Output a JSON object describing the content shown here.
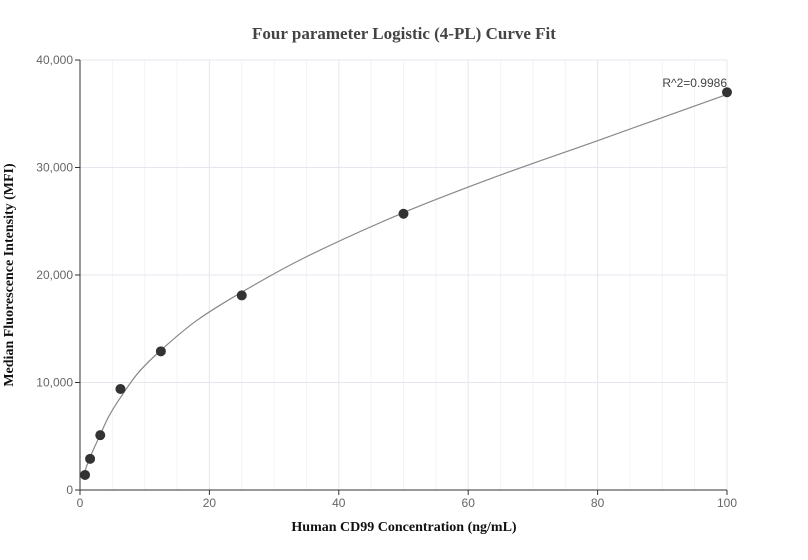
{
  "chart_data": {
    "type": "scatter",
    "title": "Four parameter Logistic (4-PL) Curve Fit",
    "xlabel": "Human CD99 Concentration (ng/mL)",
    "ylabel": "Median Fluorescence Intensity (MFI)",
    "xlim": [
      0,
      100
    ],
    "ylim": [
      0,
      40000
    ],
    "xticks": [
      0,
      20,
      40,
      60,
      80,
      100
    ],
    "yticks": [
      0,
      10000,
      20000,
      30000,
      40000
    ],
    "xtick_labels": [
      "0",
      "20",
      "40",
      "60",
      "80",
      "100"
    ],
    "ytick_labels": [
      "0",
      "10,000",
      "20,000",
      "30,000",
      "40,000"
    ],
    "grid": true,
    "series": [
      {
        "x": [
          0.78,
          1.56,
          3.13,
          6.25,
          12.5,
          25,
          50,
          100
        ],
        "y": [
          1400,
          2900,
          5100,
          9400,
          12900,
          18100,
          25700,
          37000
        ]
      }
    ],
    "fit_curve": {
      "x": [
        0.78,
        1.56,
        3.13,
        4.5,
        6.25,
        9,
        12.5,
        18,
        25,
        35,
        50,
        65,
        80,
        100
      ],
      "y": [
        1800,
        3050,
        5150,
        6900,
        8600,
        10900,
        13000,
        15750,
        18400,
        21700,
        25800,
        29300,
        32500,
        36800
      ],
      "color": "#888888"
    },
    "annotation": "R^2=0.9986",
    "point_color": "#333333"
  }
}
